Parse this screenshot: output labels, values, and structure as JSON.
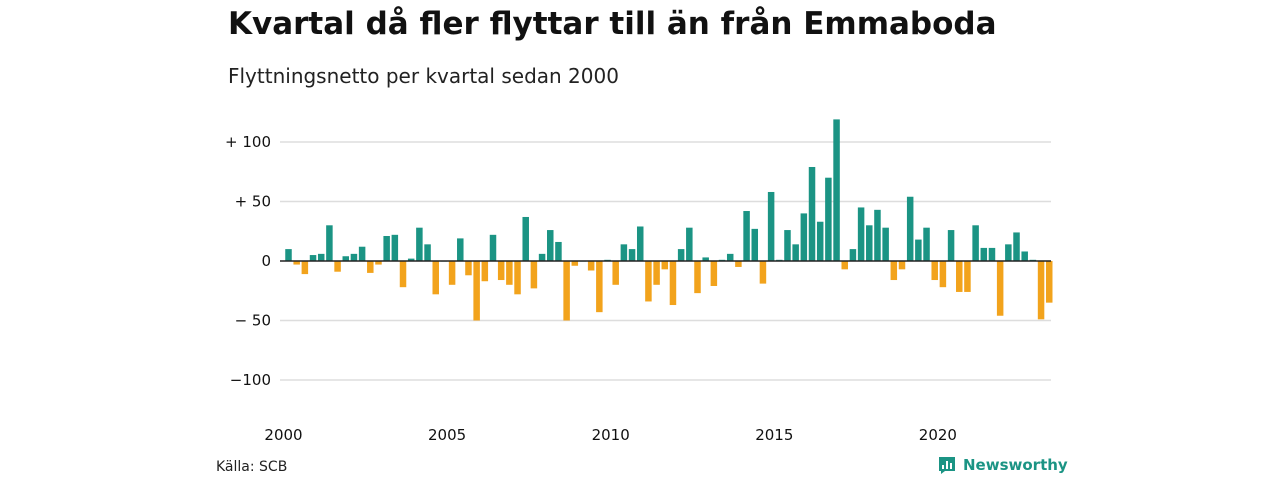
{
  "title": "Kvartal då fler flyttar till än från Emmaboda",
  "subtitle": "Flyttningsnetto per kvartal sedan 2000",
  "source": "Källa: SCB",
  "brand": "Newsworthy",
  "colors": {
    "positive": "#1b9484",
    "negative": "#f2a31c",
    "grid": "#dddddd",
    "zero": "#222222"
  },
  "chart_data": {
    "type": "bar",
    "title": "Kvartal då fler flyttar till än från Emmaboda",
    "subtitle": "Flyttningsnetto per kvartal sedan 2000",
    "start_year": 2000,
    "ylim": [
      -110,
      125
    ],
    "yticks": [
      {
        "value": 100,
        "label": "+ 100"
      },
      {
        "value": 50,
        "label": "+  50"
      },
      {
        "value": 0,
        "label": "0"
      },
      {
        "value": -50,
        "label": "− 50"
      },
      {
        "value": -100,
        "label": "−100"
      }
    ],
    "xticks": [
      {
        "year": 2000,
        "label": "2000"
      },
      {
        "year": 2005,
        "label": "2005"
      },
      {
        "year": 2010,
        "label": "2010"
      },
      {
        "year": 2015,
        "label": "2015"
      },
      {
        "year": 2020,
        "label": "2020"
      }
    ],
    "grid": true,
    "values": [
      10,
      -3,
      -11,
      5,
      6,
      30,
      -9,
      4,
      6,
      12,
      -10,
      -3,
      21,
      22,
      -22,
      2,
      28,
      14,
      -28,
      0,
      -20,
      19,
      -12,
      -50,
      -17,
      22,
      -16,
      -20,
      -28,
      37,
      -23,
      6,
      26,
      16,
      -50,
      -4,
      0,
      -8,
      -43,
      1,
      -20,
      14,
      10,
      29,
      -34,
      -20,
      -7,
      -37,
      10,
      28,
      -27,
      3,
      -21,
      1,
      6,
      -5,
      42,
      27,
      -19,
      58,
      1,
      26,
      14,
      40,
      79,
      33,
      70,
      119,
      -7,
      10,
      45,
      30,
      43,
      28,
      -16,
      -7,
      54,
      18,
      28,
      -16,
      -22,
      26,
      -26,
      -26,
      30,
      11,
      11,
      -46,
      14,
      24,
      8,
      1,
      -49,
      -35
    ]
  }
}
